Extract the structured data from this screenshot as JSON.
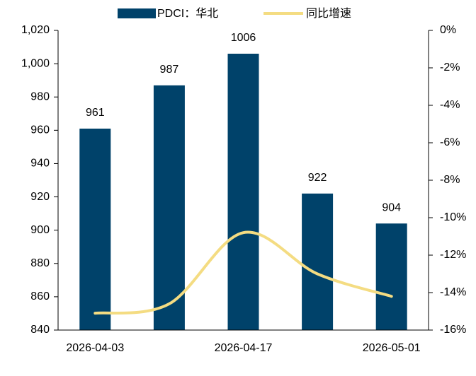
{
  "chart_data": {
    "type": "bar",
    "categories": [
      "2026-04-03",
      null,
      "2026-04-17",
      null,
      "2026-05-01"
    ],
    "series": [
      {
        "name": "PDCI：华北",
        "type": "bar",
        "color": "#00426a",
        "values": [
          961,
          987,
          1006,
          922,
          904
        ]
      },
      {
        "name": "同比增速",
        "type": "line",
        "axis": "y2",
        "color": "#f4dc82",
        "values": [
          -15.1,
          -14.6,
          -10.8,
          -13.0,
          -14.2
        ]
      }
    ],
    "ylim": [
      840,
      1020
    ],
    "yticks": [
      840,
      860,
      880,
      900,
      920,
      940,
      960,
      980,
      {
        "value": 1000,
        "label": "1,000"
      },
      {
        "value": 1020,
        "label": "1,020"
      }
    ],
    "y2lim": [
      -16,
      0
    ],
    "y2ticks": [
      {
        "value": -16,
        "label": "-16%"
      },
      {
        "value": -14,
        "label": "-14%"
      },
      {
        "value": -12,
        "label": "-12%"
      },
      {
        "value": -10,
        "label": "-10%"
      },
      {
        "value": -8,
        "label": "-8%"
      },
      {
        "value": -6,
        "label": "-6%"
      },
      {
        "value": -4,
        "label": "-4%"
      },
      {
        "value": -2,
        "label": "-2%"
      },
      {
        "value": 0,
        "label": "0%"
      }
    ],
    "legend": "top"
  }
}
